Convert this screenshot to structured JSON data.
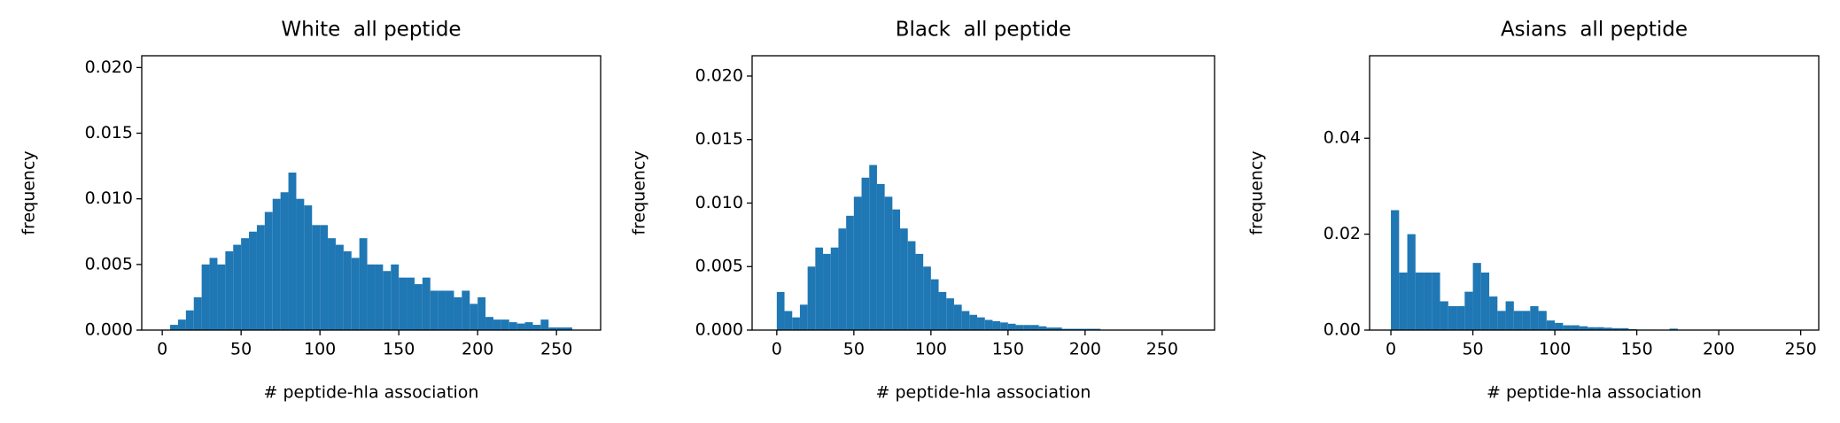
{
  "chart_data": [
    {
      "type": "histogram",
      "title": "White  all peptide",
      "xlabel": "# peptide-hla association",
      "ylabel": "frequency",
      "color": "#1f77b4",
      "bins": [
        0,
        5,
        10,
        15,
        20,
        25,
        30,
        35,
        40,
        45,
        50,
        55,
        60,
        65,
        70,
        75,
        80,
        85,
        90,
        95,
        100,
        105,
        110,
        115,
        120,
        125,
        130,
        135,
        140,
        145,
        150,
        155,
        160,
        165,
        170,
        175,
        180,
        185,
        190,
        195,
        200,
        205,
        210,
        215,
        220,
        225,
        230,
        235,
        240,
        245,
        250,
        255,
        260
      ],
      "values": [
        0,
        0.0004,
        0.0008,
        0.0015,
        0.0025,
        0.005,
        0.0055,
        0.005,
        0.006,
        0.0065,
        0.007,
        0.0075,
        0.008,
        0.009,
        0.01,
        0.0105,
        0.012,
        0.01,
        0.0095,
        0.008,
        0.008,
        0.007,
        0.0065,
        0.006,
        0.0055,
        0.007,
        0.005,
        0.005,
        0.0045,
        0.005,
        0.004,
        0.004,
        0.0035,
        0.004,
        0.003,
        0.003,
        0.003,
        0.0025,
        0.003,
        0.002,
        0.0025,
        0.001,
        0.0008,
        0.0008,
        0.0006,
        0.0005,
        0.0006,
        0.0004,
        0.0008,
        0.0002,
        0.0002,
        0.0002
      ],
      "xlim": [
        -13,
        278
      ],
      "ylim": [
        0,
        0.0209
      ],
      "xticks": [
        0,
        50,
        100,
        150,
        200,
        250
      ],
      "yticks": [
        {
          "value": 0,
          "label": "0.000"
        },
        {
          "value": 0.005,
          "label": "0.005"
        },
        {
          "value": 0.01,
          "label": "0.010"
        },
        {
          "value": 0.015,
          "label": "0.015"
        },
        {
          "value": 0.02,
          "label": "0.020"
        }
      ]
    },
    {
      "type": "histogram",
      "title": "Black  all peptide",
      "xlabel": "# peptide-hla association",
      "ylabel": "frequency",
      "color": "#1f77b4",
      "bins": [
        0,
        5,
        10,
        15,
        20,
        25,
        30,
        35,
        40,
        45,
        50,
        55,
        60,
        65,
        70,
        75,
        80,
        85,
        90,
        95,
        100,
        105,
        110,
        115,
        120,
        125,
        130,
        135,
        140,
        145,
        150,
        155,
        160,
        165,
        170,
        175,
        180,
        185,
        190,
        195,
        200,
        205,
        210,
        215,
        220,
        225,
        230,
        235,
        240,
        245,
        250,
        255,
        260
      ],
      "values": [
        0.003,
        0.0015,
        0.001,
        0.002,
        0.005,
        0.0065,
        0.006,
        0.0065,
        0.008,
        0.009,
        0.0105,
        0.012,
        0.013,
        0.0115,
        0.0105,
        0.0095,
        0.008,
        0.007,
        0.006,
        0.005,
        0.004,
        0.003,
        0.0025,
        0.002,
        0.0015,
        0.0012,
        0.001,
        0.0008,
        0.0007,
        0.0006,
        0.0005,
        0.0004,
        0.0004,
        0.0004,
        0.0003,
        0.0002,
        0.0002,
        0.0001,
        0.0001,
        0.0001,
        0.0001,
        0.0001,
        0,
        0,
        0,
        0,
        0,
        0,
        0,
        0,
        0,
        0
      ],
      "xlim": [
        -16,
        284
      ],
      "ylim": [
        0,
        0.0216
      ],
      "xticks": [
        0,
        50,
        100,
        150,
        200,
        250
      ],
      "yticks": [
        {
          "value": 0,
          "label": "0.000"
        },
        {
          "value": 0.005,
          "label": "0.005"
        },
        {
          "value": 0.01,
          "label": "0.010"
        },
        {
          "value": 0.015,
          "label": "0.015"
        },
        {
          "value": 0.02,
          "label": "0.020"
        }
      ]
    },
    {
      "type": "histogram",
      "title": "Asians  all peptide",
      "xlabel": "# peptide-hla association",
      "ylabel": "frequency",
      "color": "#1f77b4",
      "bins": [
        0,
        5,
        10,
        15,
        20,
        25,
        30,
        35,
        40,
        45,
        50,
        55,
        60,
        65,
        70,
        75,
        80,
        85,
        90,
        95,
        100,
        105,
        110,
        115,
        120,
        125,
        130,
        135,
        140,
        145,
        150,
        155,
        160,
        165,
        170,
        175,
        180,
        185,
        190,
        195,
        200,
        205,
        210,
        215,
        220,
        225,
        230,
        235,
        240,
        245,
        250,
        255,
        260
      ],
      "values": [
        0.025,
        0.012,
        0.02,
        0.012,
        0.012,
        0.012,
        0.006,
        0.005,
        0.005,
        0.008,
        0.014,
        0.012,
        0.007,
        0.004,
        0.006,
        0.004,
        0.004,
        0.005,
        0.004,
        0.002,
        0.0015,
        0.001,
        0.001,
        0.0008,
        0.0006,
        0.0006,
        0.0005,
        0.0004,
        0.0004,
        0.0002,
        0.0001,
        0.0001,
        0,
        0,
        0.0003,
        0,
        0,
        0,
        0,
        0,
        0,
        0,
        0,
        0,
        0,
        0,
        0,
        0,
        0,
        0,
        0,
        0
      ],
      "xlim": [
        -13,
        261
      ],
      "ylim": [
        0,
        0.0572
      ],
      "xticks": [
        0,
        50,
        100,
        150,
        200,
        250
      ],
      "yticks": [
        {
          "value": 0,
          "label": "0.00"
        },
        {
          "value": 0.02,
          "label": "0.02"
        },
        {
          "value": 0.04,
          "label": "0.04"
        }
      ]
    }
  ]
}
